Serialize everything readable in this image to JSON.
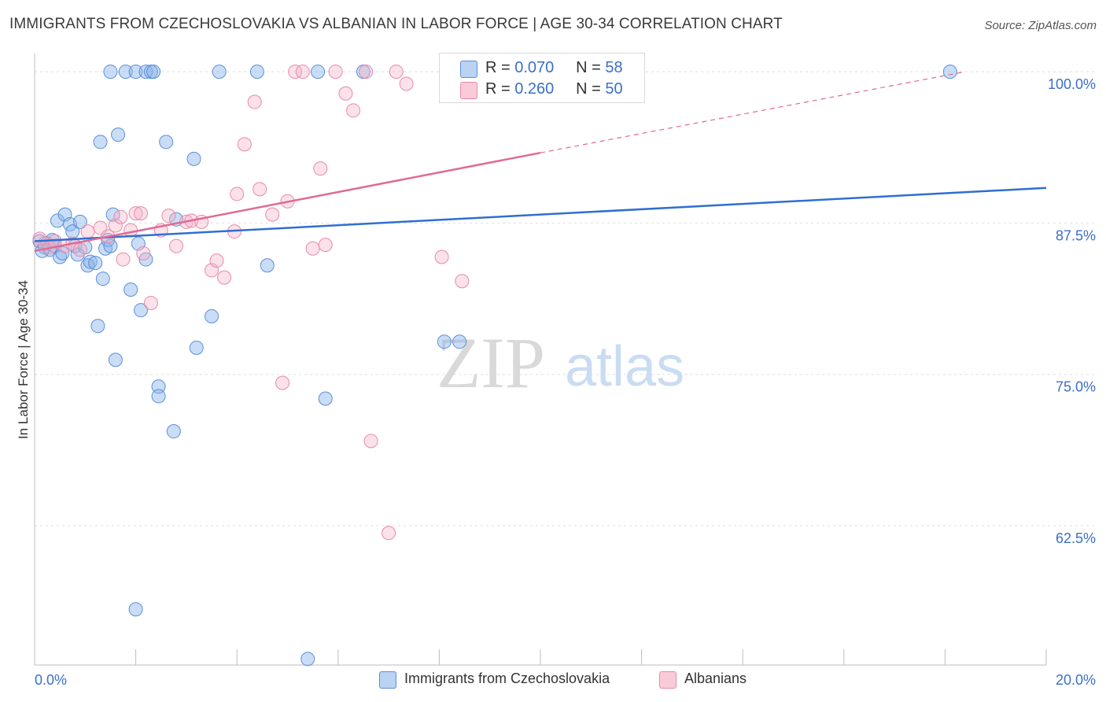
{
  "title": "IMMIGRANTS FROM CZECHOSLOVAKIA VS ALBANIAN IN LABOR FORCE | AGE 30-34 CORRELATION CHART",
  "source": "Source: ZipAtlas.com",
  "watermark": {
    "zip": "ZIP",
    "atlas": "atlas"
  },
  "legend": {
    "r_label": "R =",
    "n_label": "N =",
    "rows": [
      {
        "r": "0.070",
        "n": "58"
      },
      {
        "r": "0.260",
        "n": "50"
      }
    ]
  },
  "chart_data": {
    "type": "scatter",
    "title": "IMMIGRANTS FROM CZECHOSLOVAKIA VS ALBANIAN IN LABOR FORCE | AGE 30-34 CORRELATION CHART",
    "xlabel": "",
    "ylabel": "In Labor Force | Age 30-34",
    "xlim": [
      0,
      20
    ],
    "ylim": [
      51,
      101.5
    ],
    "x_tick_labels": [
      {
        "value": 0,
        "label": "0.0%"
      },
      {
        "value": 20,
        "label": "20.0%"
      }
    ],
    "y_tick_labels": [
      {
        "value": 100,
        "label": "100.0%"
      },
      {
        "value": 87.5,
        "label": "87.5%"
      },
      {
        "value": 75,
        "label": "75.0%"
      },
      {
        "value": 62.5,
        "label": "62.5%"
      }
    ],
    "grid": true,
    "legend_position": "top-center",
    "series": [
      {
        "name": "Immigrants from Czechoslovakia",
        "color": "#8ab4ea",
        "edge_color": "#5b8fd8",
        "trend_color": "#2f6fd0",
        "trend": {
          "x0": 0,
          "y0": 86.0,
          "x1": 20,
          "y1": 90.4
        },
        "points": [
          [
            0.1,
            86.0
          ],
          [
            0.2,
            85.5
          ],
          [
            0.25,
            85.8
          ],
          [
            0.3,
            85.3
          ],
          [
            0.35,
            86.1
          ],
          [
            0.4,
            85.6
          ],
          [
            0.45,
            87.7
          ],
          [
            0.5,
            84.7
          ],
          [
            0.55,
            85.0
          ],
          [
            0.6,
            88.2
          ],
          [
            0.7,
            87.4
          ],
          [
            0.75,
            86.8
          ],
          [
            0.8,
            85.6
          ],
          [
            0.85,
            84.9
          ],
          [
            0.9,
            87.6
          ],
          [
            1.0,
            85.5
          ],
          [
            1.05,
            84.0
          ],
          [
            1.1,
            84.3
          ],
          [
            1.2,
            84.2
          ],
          [
            1.25,
            79.0
          ],
          [
            1.3,
            94.2
          ],
          [
            1.35,
            82.9
          ],
          [
            1.4,
            85.4
          ],
          [
            1.45,
            86.1
          ],
          [
            1.5,
            85.6
          ],
          [
            1.5,
            100.0
          ],
          [
            1.55,
            88.2
          ],
          [
            1.6,
            76.2
          ],
          [
            1.65,
            94.8
          ],
          [
            1.8,
            100.0
          ],
          [
            1.9,
            82.0
          ],
          [
            2.0,
            100.0
          ],
          [
            2.05,
            85.8
          ],
          [
            2.1,
            80.3
          ],
          [
            2.2,
            84.5
          ],
          [
            2.2,
            100.0
          ],
          [
            2.3,
            100.0
          ],
          [
            2.35,
            100.0
          ],
          [
            2.45,
            74.0
          ],
          [
            2.45,
            73.2
          ],
          [
            2.6,
            94.2
          ],
          [
            2.75,
            70.3
          ],
          [
            2.8,
            87.8
          ],
          [
            3.15,
            92.8
          ],
          [
            3.2,
            77.2
          ],
          [
            3.5,
            79.8
          ],
          [
            3.65,
            100.0
          ],
          [
            4.4,
            100.0
          ],
          [
            4.6,
            84.0
          ],
          [
            5.6,
            100.0
          ],
          [
            5.75,
            73.0
          ],
          [
            6.5,
            100.0
          ],
          [
            8.1,
            77.7
          ],
          [
            8.4,
            77.7
          ],
          [
            2.0,
            55.6
          ],
          [
            5.4,
            51.5
          ],
          [
            18.1,
            100.0
          ],
          [
            0.15,
            85.2
          ]
        ]
      },
      {
        "name": "Albanians",
        "color": "#f5b3c8",
        "edge_color": "#e88aab",
        "trend_color": "#e06a94",
        "trend": {
          "x0": 0,
          "y0": 85.2,
          "x1": 10,
          "y1": 93.3
        },
        "trend_extension": {
          "x0": 10,
          "y0": 93.3,
          "x1": 18.4,
          "y1": 100.0
        },
        "points": [
          [
            0.1,
            86.2
          ],
          [
            0.2,
            85.8
          ],
          [
            0.3,
            85.5
          ],
          [
            0.4,
            86.0
          ],
          [
            0.6,
            85.6
          ],
          [
            0.75,
            85.8
          ],
          [
            0.9,
            85.3
          ],
          [
            1.05,
            86.8
          ],
          [
            1.3,
            87.1
          ],
          [
            1.45,
            86.4
          ],
          [
            1.6,
            87.3
          ],
          [
            1.7,
            88.0
          ],
          [
            1.75,
            84.5
          ],
          [
            1.9,
            86.9
          ],
          [
            2.0,
            88.3
          ],
          [
            2.1,
            88.3
          ],
          [
            2.15,
            85.0
          ],
          [
            2.3,
            80.9
          ],
          [
            2.5,
            86.9
          ],
          [
            2.65,
            88.1
          ],
          [
            2.8,
            85.6
          ],
          [
            3.0,
            87.6
          ],
          [
            3.1,
            87.7
          ],
          [
            3.3,
            87.6
          ],
          [
            3.5,
            83.6
          ],
          [
            3.6,
            84.4
          ],
          [
            3.75,
            83.0
          ],
          [
            3.95,
            86.8
          ],
          [
            4.0,
            89.9
          ],
          [
            4.15,
            94.0
          ],
          [
            4.35,
            97.5
          ],
          [
            4.45,
            90.3
          ],
          [
            4.7,
            88.2
          ],
          [
            4.9,
            74.3
          ],
          [
            5.0,
            89.3
          ],
          [
            5.15,
            100.0
          ],
          [
            5.3,
            100.0
          ],
          [
            5.5,
            85.4
          ],
          [
            5.65,
            92.0
          ],
          [
            5.75,
            85.7
          ],
          [
            5.95,
            100.0
          ],
          [
            6.15,
            98.2
          ],
          [
            6.3,
            96.8
          ],
          [
            6.55,
            100.0
          ],
          [
            6.65,
            69.5
          ],
          [
            7.0,
            61.9
          ],
          [
            7.15,
            100.0
          ],
          [
            7.35,
            99.0
          ],
          [
            8.05,
            84.7
          ],
          [
            8.45,
            82.7
          ]
        ]
      }
    ]
  }
}
